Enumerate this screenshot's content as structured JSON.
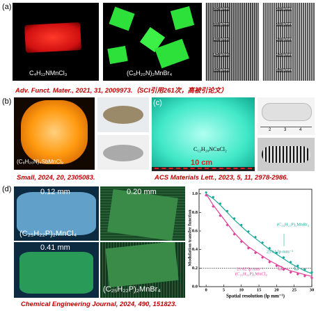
{
  "panel_a": {
    "label": "(a)",
    "sample_1": "C₄H₁₂NMnCl₃",
    "sample_2": "(C₈H₂₀N)₂MnBr₄",
    "resolutions_1": [
      "3.0 lp/mm",
      "3.5 lp/mm",
      "4.0 lp/mm",
      "4.5 lp/mm",
      "5.0 lp/mm"
    ],
    "resolutions_2": [
      "3.0 lp/mm",
      "3.5 lp/mm",
      "4.0 lp/mm",
      "4.5 lp/mm",
      "5.0 lp/mm"
    ],
    "citation": "Adv. Funct. Mater., 2021, 31, 2009973.（SCI引用261次，高被引论文）"
  },
  "panel_b": {
    "label": "(b)",
    "sample": "(C₈H₂₀N)₄SbMnCl₉",
    "citation": "Small, 2024, 20, 2305083."
  },
  "panel_c": {
    "label": "(c)",
    "sample": "C₁₂H₂₈NCuCl₂",
    "scale": "10 cm",
    "ruler": [
      "2",
      "3",
      "4"
    ],
    "citation": "ACS Materials Lett., 2023, 5, 11, 2978-2986."
  },
  "panel_d": {
    "label": "(d)",
    "thickness": [
      "0.12 mm",
      "0.20 mm",
      "0.41 mm"
    ],
    "sample_1": "(C₂₅H₂₂P)₂MnCl₄",
    "sample_2": "(C₂₅H₂₂P)₂MnBr₄",
    "citation": "Chemical Engineering Journal, 2024, 490, 151823."
  },
  "chart_data": {
    "type": "line",
    "x_label": "Spatial resolution (lp mm⁻¹)",
    "y_label": "Modulation transfer function",
    "x": [
      0,
      2,
      4,
      6,
      8,
      10,
      12,
      14,
      16,
      18,
      20,
      22,
      24,
      26,
      28,
      30
    ],
    "series": [
      {
        "name": "(C₂₅H₂₂P)₂MnBr₄",
        "color": "#1aa89a",
        "values": [
          1.0,
          0.95,
          0.88,
          0.8,
          0.72,
          0.65,
          0.58,
          0.52,
          0.46,
          0.4,
          0.35,
          0.3,
          0.25,
          0.21,
          0.17,
          0.14
        ]
      },
      {
        "name": "(C₂₅H₂₂P)₂MnCl₄",
        "color": "#e0409a",
        "values": [
          1.0,
          0.88,
          0.78,
          0.68,
          0.58,
          0.5,
          0.43,
          0.38,
          0.33,
          0.28,
          0.24,
          0.2,
          0.17,
          0.15,
          0.13,
          0.11
        ]
      }
    ],
    "threshold": 0.2,
    "annotations": [
      {
        "text": "25.61 lp mm⁻¹",
        "x": 25.61,
        "y": 0.2,
        "color": "#1aa89a"
      },
      {
        "text": "21.02 lp mm⁻¹",
        "x": 21.02,
        "y": 0.2,
        "color": "#e0409a"
      }
    ],
    "xlim": [
      -2,
      30
    ],
    "ylim": [
      0,
      1.05
    ],
    "xticks": [
      0,
      5,
      10,
      15,
      20,
      25,
      30
    ],
    "yticks": [
      {
        "value": 0,
        "label": "0.0"
      },
      0.2,
      0.4,
      0.6,
      0.8,
      {
        "value": 1,
        "label": "1.0"
      }
    ]
  }
}
